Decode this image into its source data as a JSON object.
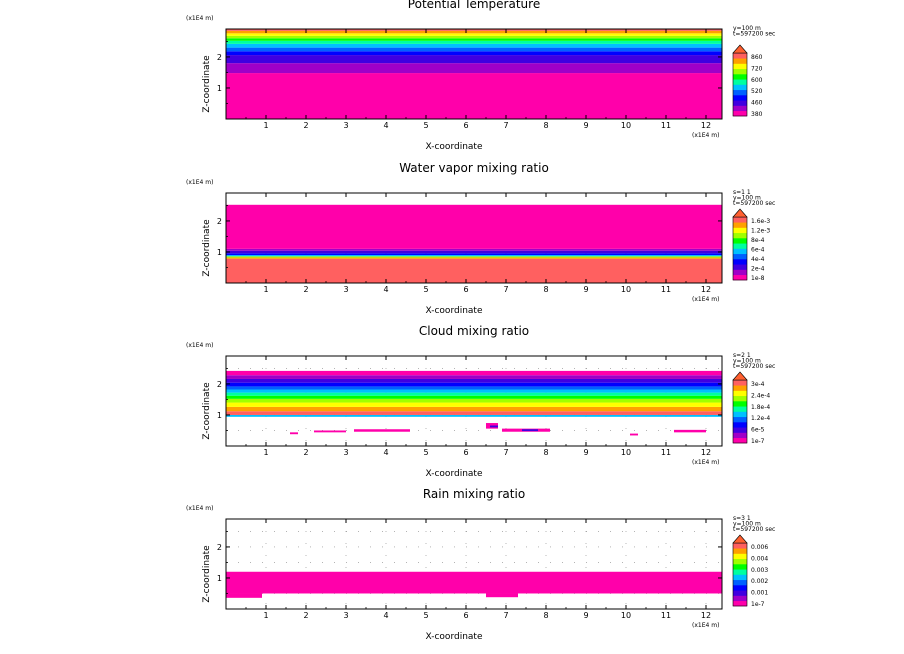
{
  "figure_title": "",
  "chart_data": [
    {
      "type": "heatmap",
      "title": "Potential Temperature",
      "xlabel": "X-coordinate",
      "ylabel": "Z-coordinate",
      "x_unit_label": "(x1E4 m)",
      "z_unit_label": "(x1E4 m)",
      "xlim": [
        0,
        12.4
      ],
      "zlim": [
        0,
        2.9
      ],
      "x_ticks": [
        "1",
        "2",
        "3",
        "4",
        "5",
        "6",
        "7",
        "8",
        "9",
        "10",
        "11",
        "12"
      ],
      "z_ticks": [
        "1",
        "2"
      ],
      "info_lines": [
        "y=100 m",
        "t=597200 sec"
      ],
      "colorbar_labels": [
        "860",
        "720",
        "600",
        "520",
        "460",
        "380"
      ],
      "colorbar_colors": [
        "#ff00aa",
        "#a000c8",
        "#4000e0",
        "#0000ff",
        "#0060ff",
        "#00c0ff",
        "#00ffa0",
        "#00ff00",
        "#a0ff00",
        "#ffff00",
        "#ffa000",
        "#ff6060"
      ],
      "bands": [
        {
          "z0": 0.0,
          "z1": 1.48,
          "color": "#ff00aa"
        },
        {
          "z0": 1.48,
          "z1": 1.8,
          "color": "#a000c8"
        },
        {
          "z0": 1.8,
          "z1": 2.06,
          "color": "#4000e0"
        },
        {
          "z0": 2.06,
          "z1": 2.18,
          "color": "#0000ff"
        },
        {
          "z0": 2.18,
          "z1": 2.3,
          "color": "#0060ff"
        },
        {
          "z0": 2.3,
          "z1": 2.42,
          "color": "#00c0ff"
        },
        {
          "z0": 2.42,
          "z1": 2.52,
          "color": "#00ffa0"
        },
        {
          "z0": 2.52,
          "z1": 2.6,
          "color": "#00ff00"
        },
        {
          "z0": 2.6,
          "z1": 2.68,
          "color": "#a0ff00"
        },
        {
          "z0": 2.68,
          "z1": 2.76,
          "color": "#ffff00"
        },
        {
          "z0": 2.76,
          "z1": 2.84,
          "color": "#ffa000"
        },
        {
          "z0": 2.84,
          "z1": 2.9,
          "color": "#ff6060"
        }
      ],
      "blobs": []
    },
    {
      "type": "heatmap",
      "title": "Water vapor mixing ratio",
      "xlabel": "X-coordinate",
      "ylabel": "Z-coordinate",
      "x_unit_label": "(x1E4 m)",
      "z_unit_label": "(x1E4 m)",
      "xlim": [
        0,
        12.4
      ],
      "zlim": [
        0,
        2.9
      ],
      "x_ticks": [
        "1",
        "2",
        "3",
        "4",
        "5",
        "6",
        "7",
        "8",
        "9",
        "10",
        "11",
        "12"
      ],
      "z_ticks": [
        "1",
        "2"
      ],
      "info_lines": [
        "s=1 1",
        "y=100 m",
        "t=597200 sec"
      ],
      "colorbar_labels": [
        "1.6e-3",
        "1.2e-3",
        "8e-4",
        "6e-4",
        "4e-4",
        "2e-4",
        "1e-8"
      ],
      "colorbar_colors": [
        "#ff00aa",
        "#a000c8",
        "#4000e0",
        "#0000ff",
        "#0060ff",
        "#00c0ff",
        "#00ffa0",
        "#00ff00",
        "#a0ff00",
        "#ffff00",
        "#ffa000",
        "#ff6060"
      ],
      "bands": [
        {
          "z0": 0.0,
          "z1": 0.78,
          "color": "#ff6060"
        },
        {
          "z0": 0.78,
          "z1": 0.82,
          "color": "#ffa000"
        },
        {
          "z0": 0.82,
          "z1": 0.86,
          "color": "#a0ff00"
        },
        {
          "z0": 0.86,
          "z1": 0.9,
          "color": "#00c0ff"
        },
        {
          "z0": 0.9,
          "z1": 0.96,
          "color": "#0000ff"
        },
        {
          "z0": 0.96,
          "z1": 1.04,
          "color": "#4000e0"
        },
        {
          "z0": 1.04,
          "z1": 1.1,
          "color": "#a000c8"
        },
        {
          "z0": 1.1,
          "z1": 2.52,
          "color": "#ff00aa"
        }
      ],
      "blobs": []
    },
    {
      "type": "heatmap",
      "title": "Cloud mixing ratio",
      "xlabel": "X-coordinate",
      "ylabel": "Z-coordinate",
      "x_unit_label": "(x1E4 m)",
      "z_unit_label": "(x1E4 m)",
      "xlim": [
        0,
        12.4
      ],
      "zlim": [
        0,
        2.9
      ],
      "x_ticks": [
        "1",
        "2",
        "3",
        "4",
        "5",
        "6",
        "7",
        "8",
        "9",
        "10",
        "11",
        "12"
      ],
      "z_ticks": [
        "1",
        "2"
      ],
      "info_lines": [
        "s=2 1",
        "y=100 m",
        "t=597200 sec"
      ],
      "colorbar_labels": [
        "3e-4",
        "2.4e-4",
        "1.8e-4",
        "1.2e-4",
        "6e-5",
        "1e-7"
      ],
      "colorbar_colors": [
        "#ff00aa",
        "#a000c8",
        "#4000e0",
        "#0000ff",
        "#0060ff",
        "#00c0ff",
        "#00ffa0",
        "#00ff00",
        "#a0ff00",
        "#ffff00",
        "#ffa000",
        "#ff6060"
      ],
      "bands": [
        {
          "z0": 0.94,
          "z1": 1.0,
          "color": "#00c0ff"
        },
        {
          "z0": 1.0,
          "z1": 1.12,
          "color": "#ff6060"
        },
        {
          "z0": 1.12,
          "z1": 1.26,
          "color": "#ffa000"
        },
        {
          "z0": 1.26,
          "z1": 1.4,
          "color": "#ffff00"
        },
        {
          "z0": 1.4,
          "z1": 1.52,
          "color": "#a0ff00"
        },
        {
          "z0": 1.52,
          "z1": 1.62,
          "color": "#00ff00"
        },
        {
          "z0": 1.62,
          "z1": 1.72,
          "color": "#00ffa0"
        },
        {
          "z0": 1.72,
          "z1": 1.82,
          "color": "#00c0ff"
        },
        {
          "z0": 1.82,
          "z1": 1.92,
          "color": "#0060ff"
        },
        {
          "z0": 1.92,
          "z1": 2.04,
          "color": "#0000ff"
        },
        {
          "z0": 2.04,
          "z1": 2.16,
          "color": "#4000e0"
        },
        {
          "z0": 2.16,
          "z1": 2.28,
          "color": "#a000c8"
        },
        {
          "z0": 2.28,
          "z1": 2.42,
          "color": "#ff00aa"
        }
      ],
      "blobs": [
        {
          "x0": 1.6,
          "x1": 1.8,
          "z0": 0.38,
          "z1": 0.44,
          "color": "#ff00aa"
        },
        {
          "x0": 2.2,
          "x1": 3.0,
          "z0": 0.44,
          "z1": 0.5,
          "color": "#ff00aa"
        },
        {
          "x0": 3.2,
          "x1": 4.6,
          "z0": 0.46,
          "z1": 0.54,
          "color": "#ff00aa"
        },
        {
          "x0": 6.5,
          "x1": 6.8,
          "z0": 0.56,
          "z1": 0.74,
          "color": "#ff00aa"
        },
        {
          "x0": 6.6,
          "x1": 6.8,
          "z0": 0.6,
          "z1": 0.66,
          "color": "#4000e0"
        },
        {
          "x0": 6.9,
          "x1": 8.1,
          "z0": 0.46,
          "z1": 0.56,
          "color": "#ff00aa"
        },
        {
          "x0": 7.4,
          "x1": 7.8,
          "z0": 0.48,
          "z1": 0.54,
          "color": "#4000e0"
        },
        {
          "x0": 10.1,
          "x1": 10.3,
          "z0": 0.34,
          "z1": 0.4,
          "color": "#ff00aa"
        },
        {
          "x0": 11.2,
          "x1": 12.0,
          "z0": 0.44,
          "z1": 0.52,
          "color": "#ff00aa"
        }
      ]
    },
    {
      "type": "heatmap",
      "title": "Rain mixing ratio",
      "xlabel": "X-coordinate",
      "ylabel": "Z-coordinate",
      "x_unit_label": "(x1E4 m)",
      "z_unit_label": "(x1E4 m)",
      "xlim": [
        0,
        12.4
      ],
      "zlim": [
        0,
        2.9
      ],
      "x_ticks": [
        "1",
        "2",
        "3",
        "4",
        "5",
        "6",
        "7",
        "8",
        "9",
        "10",
        "11",
        "12"
      ],
      "z_ticks": [
        "1",
        "2"
      ],
      "info_lines": [
        "s=3 1",
        "y=100 m",
        "t=597200 sec"
      ],
      "colorbar_labels": [
        "0.006",
        "0.004",
        "0.003",
        "0.002",
        "0.001",
        "1e-7"
      ],
      "colorbar_colors": [
        "#ff00aa",
        "#a000c8",
        "#4000e0",
        "#0000ff",
        "#0060ff",
        "#00c0ff",
        "#00ffa0",
        "#00ff00",
        "#a0ff00",
        "#ffff00",
        "#ffa000",
        "#ff6060"
      ],
      "bands": [
        {
          "z0": 0.5,
          "z1": 1.2,
          "color": "#ff00aa"
        }
      ],
      "blobs": [
        {
          "x0": 0.0,
          "x1": 0.9,
          "z0": 0.36,
          "z1": 0.5,
          "color": "#ff00aa"
        },
        {
          "x0": 6.5,
          "x1": 7.3,
          "z0": 0.38,
          "z1": 0.5,
          "color": "#ff00aa"
        }
      ]
    }
  ]
}
